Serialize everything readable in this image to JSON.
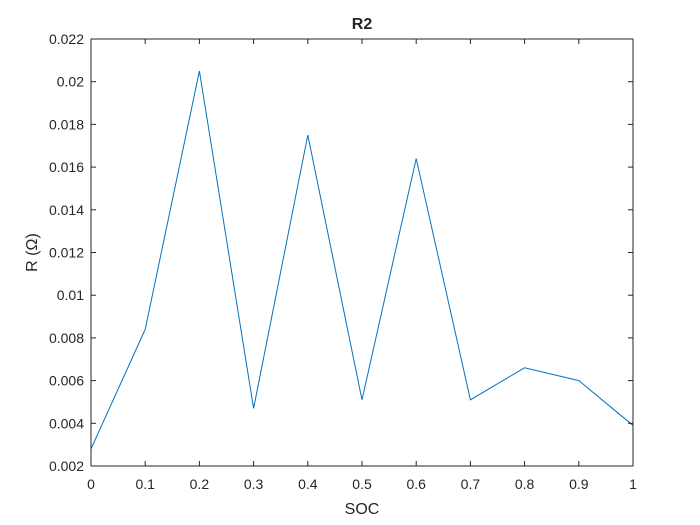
{
  "chart_data": {
    "type": "line",
    "title": "R2",
    "xlabel": "SOC",
    "ylabel": "R (Ω)",
    "xlim": [
      0,
      1
    ],
    "ylim": [
      0.002,
      0.022
    ],
    "xticks": [
      0,
      0.1,
      0.2,
      0.3,
      0.4,
      0.5,
      0.6,
      0.7,
      0.8,
      0.9,
      1
    ],
    "xtick_labels": [
      "0",
      "0.1",
      "0.2",
      "0.3",
      "0.4",
      "0.5",
      "0.6",
      "0.7",
      "0.8",
      "0.9",
      "1"
    ],
    "yticks": [
      0.002,
      0.004,
      0.006,
      0.008,
      0.01,
      0.012,
      0.014,
      0.016,
      0.018,
      0.02,
      0.022
    ],
    "ytick_labels": [
      "0.002",
      "0.004",
      "0.006",
      "0.008",
      "0.01",
      "0.012",
      "0.014",
      "0.016",
      "0.018",
      "0.02",
      "0.022"
    ],
    "grid": false,
    "line_color": "#0072bd",
    "series": [
      {
        "x": [
          0,
          0.1,
          0.2,
          0.3,
          0.4,
          0.5,
          0.6,
          0.7,
          0.8,
          0.9,
          1
        ],
        "values": [
          0.0028,
          0.0084,
          0.0205,
          0.0047,
          0.0175,
          0.0051,
          0.0164,
          0.0051,
          0.0066,
          0.006,
          0.0039
        ]
      }
    ]
  }
}
